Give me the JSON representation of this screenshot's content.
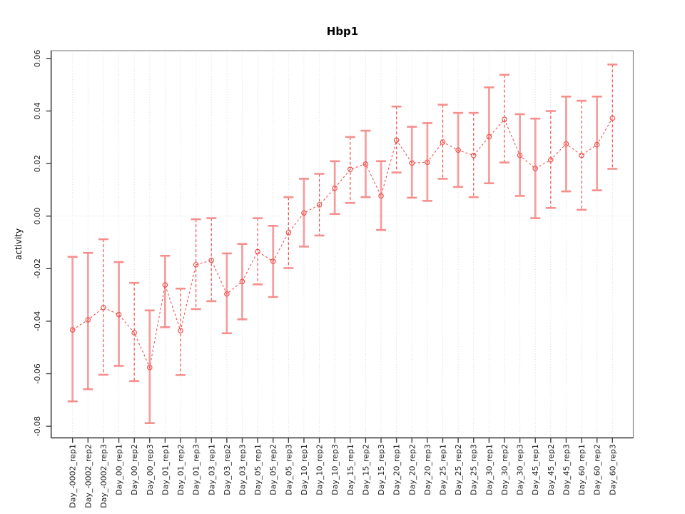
{
  "chart_data": {
    "type": "scatter",
    "title": "Hbp1",
    "xlabel": "",
    "ylabel": "activity",
    "ylim": [
      -0.0845,
      0.063
    ],
    "yticks": [
      -0.08,
      -0.06,
      -0.04,
      -0.02,
      0.0,
      0.02,
      0.04,
      0.06
    ],
    "grid": {
      "vertical": "dotted line at every category",
      "horizontal": "dotted line at y=0 only"
    },
    "legend": "none",
    "categories": [
      "Day_-0002_rep1",
      "Day_-0002_rep2",
      "Day_-0002_rep3",
      "Day_00_rep1",
      "Day_00_rep2",
      "Day_00_rep3",
      "Day_01_rep1",
      "Day_01_rep2",
      "Day_01_rep3",
      "Day_03_rep1",
      "Day_03_rep2",
      "Day_03_rep3",
      "Day_05_rep1",
      "Day_05_rep2",
      "Day_05_rep3",
      "Day_10_rep1",
      "Day_10_rep2",
      "Day_10_rep3",
      "Day_15_rep1",
      "Day_15_rep2",
      "Day_15_rep3",
      "Day_20_rep1",
      "Day_20_rep2",
      "Day_20_rep3",
      "Day_25_rep1",
      "Day_25_rep2",
      "Day_25_rep3",
      "Day_30_rep1",
      "Day_30_rep2",
      "Day_30_rep3",
      "Day_45_rep1",
      "Day_45_rep2",
      "Day_45_rep3",
      "Day_60_rep1",
      "Day_60_rep2",
      "Day_60_rep3"
    ],
    "series": [
      {
        "name": "activity",
        "marker": "open-circle",
        "line_style": "dashed",
        "values": [
          -0.0433,
          -0.0395,
          -0.0348,
          -0.0375,
          -0.0444,
          -0.0576,
          -0.0262,
          -0.0436,
          -0.0185,
          -0.0168,
          -0.0296,
          -0.0249,
          -0.0135,
          -0.0172,
          -0.0063,
          0.0012,
          0.0043,
          0.0106,
          0.0178,
          0.0198,
          0.0077,
          0.0289,
          0.0202,
          0.0205,
          0.0282,
          0.0251,
          0.0231,
          0.0302,
          0.0368,
          0.0231,
          0.0181,
          0.0214,
          0.0275,
          0.0231,
          0.0272,
          0.0373
        ],
        "error_lower": [
          -0.0705,
          -0.0659,
          -0.0604,
          -0.057,
          -0.0628,
          -0.0788,
          -0.0423,
          -0.0605,
          -0.0354,
          -0.0324,
          -0.0446,
          -0.0393,
          -0.026,
          -0.0308,
          -0.0198,
          -0.0116,
          -0.0074,
          0.0008,
          0.005,
          0.0072,
          -0.0053,
          0.0166,
          0.007,
          0.0058,
          0.0142,
          0.0111,
          0.0072,
          0.0125,
          0.0204,
          0.0077,
          -0.0008,
          0.0031,
          0.0094,
          0.0024,
          0.0098,
          0.018
        ],
        "error_upper": [
          -0.0155,
          -0.014,
          -0.0088,
          -0.0175,
          -0.0254,
          -0.0359,
          -0.0151,
          -0.0276,
          -0.0012,
          -0.0008,
          -0.0142,
          -0.0106,
          -0.0008,
          -0.0037,
          0.0072,
          0.0142,
          0.0161,
          0.0209,
          0.0301,
          0.0325,
          0.0209,
          0.0417,
          0.034,
          0.0354,
          0.0424,
          0.0393,
          0.0393,
          0.049,
          0.0538,
          0.0388,
          0.0371,
          0.04,
          0.0455,
          0.0439,
          0.0455,
          0.0577
        ],
        "bar_styles": [
          "solid",
          "solid",
          "dashed",
          "solid",
          "dashed",
          "solid",
          "solid",
          "dashed",
          "dashed",
          "dashed",
          "solid",
          "solid",
          "dashed",
          "solid",
          "dashed",
          "solid",
          "dashed",
          "solid",
          "dashed",
          "solid",
          "solid",
          "dashed",
          "solid",
          "solid",
          "dashed",
          "solid",
          "dashed",
          "solid",
          "dashed",
          "solid",
          "solid",
          "dashed",
          "solid",
          "dashed",
          "solid",
          "dashed"
        ]
      }
    ],
    "colors": {
      "point_line": "#f0524e",
      "bar_solid": "#f5a0a0",
      "bar_dashed": "#ef504c",
      "cap": "#f58f8d",
      "grid": "#d9d9d9",
      "frame": "#8a8a8a",
      "axis": "#3f3f3f",
      "text": "#1a1a1a",
      "background": "#ffffff"
    }
  }
}
